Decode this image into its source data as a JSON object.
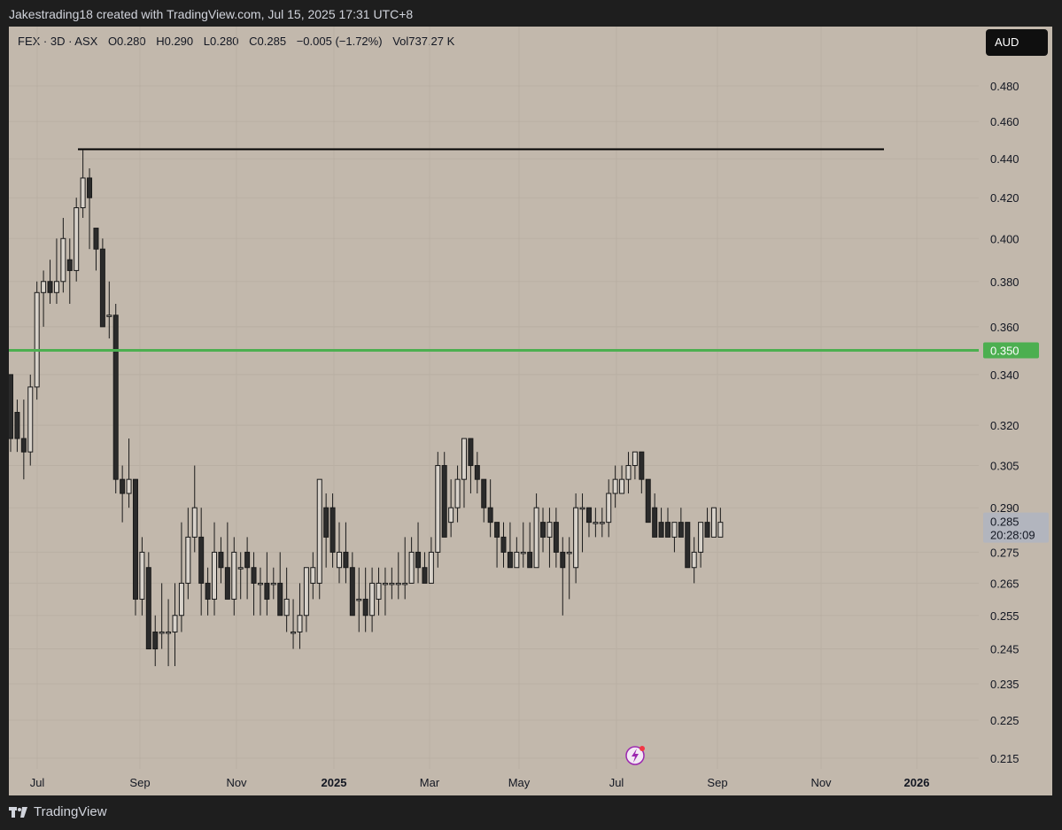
{
  "header": {
    "caption": "Jakestrading18 created with TradingView.com, Jul 15, 2025 17:31 UTC+8"
  },
  "legend": {
    "symbol": "FEX · 3D · ASX",
    "open": "O0.280",
    "high": "H0.290",
    "low": "L0.280",
    "close": "C0.285",
    "change": "−0.005 (−1.72%)",
    "volume": "Vol737.27 K"
  },
  "currency": "AUD",
  "footer": {
    "brand": "TradingView"
  },
  "colors": {
    "background": "#c2b8ac",
    "up_body": "#d8d2ca",
    "down_body": "#2b2b2b",
    "wick": "#1a1a1a",
    "support_line": "#4caf50",
    "resistance_line": "#000000"
  },
  "chart_data": {
    "type": "candlestick",
    "title": "",
    "interval": "3D",
    "ylim": [
      0.21,
      0.49
    ],
    "y_scale": "log",
    "y_ticks": [
      "0.480",
      "0.460",
      "0.440",
      "0.420",
      "0.400",
      "0.380",
      "0.360",
      "0.340",
      "0.320",
      "0.305",
      "0.290",
      "0.275",
      "0.265",
      "0.255",
      "0.245",
      "0.235",
      "0.225",
      "0.215"
    ],
    "x_ticks": [
      "Jul",
      "Sep",
      "Nov",
      "2025",
      "Mar",
      "May",
      "Jul",
      "Sep",
      "Nov",
      "2026"
    ],
    "horizontal_lines": [
      {
        "name": "support",
        "value": 0.35,
        "label": "0.350",
        "color": "#4caf50"
      },
      {
        "name": "resistance",
        "value": 0.445,
        "color": "#000000"
      }
    ],
    "current_price": {
      "value": 0.285,
      "label": "0.285",
      "countdown": "20:28:09"
    },
    "candles": [
      [
        0.34,
        0.34,
        0.31,
        0.315
      ],
      [
        0.325,
        0.33,
        0.31,
        0.315
      ],
      [
        0.315,
        0.33,
        0.3,
        0.31
      ],
      [
        0.31,
        0.34,
        0.305,
        0.335
      ],
      [
        0.335,
        0.38,
        0.33,
        0.375
      ],
      [
        0.375,
        0.385,
        0.36,
        0.38
      ],
      [
        0.38,
        0.39,
        0.37,
        0.375
      ],
      [
        0.375,
        0.4,
        0.37,
        0.38
      ],
      [
        0.38,
        0.41,
        0.375,
        0.4
      ],
      [
        0.39,
        0.4,
        0.37,
        0.385
      ],
      [
        0.385,
        0.42,
        0.38,
        0.415
      ],
      [
        0.415,
        0.445,
        0.41,
        0.43
      ],
      [
        0.43,
        0.435,
        0.395,
        0.42
      ],
      [
        0.405,
        0.405,
        0.385,
        0.395
      ],
      [
        0.395,
        0.4,
        0.36,
        0.36
      ],
      [
        0.365,
        0.38,
        0.355,
        0.365
      ],
      [
        0.365,
        0.37,
        0.295,
        0.3
      ],
      [
        0.3,
        0.305,
        0.285,
        0.295
      ],
      [
        0.295,
        0.315,
        0.29,
        0.3
      ],
      [
        0.3,
        0.3,
        0.255,
        0.26
      ],
      [
        0.26,
        0.28,
        0.255,
        0.275
      ],
      [
        0.27,
        0.275,
        0.245,
        0.245
      ],
      [
        0.25,
        0.255,
        0.24,
        0.245
      ],
      [
        0.25,
        0.265,
        0.245,
        0.25
      ],
      [
        0.25,
        0.26,
        0.24,
        0.25
      ],
      [
        0.25,
        0.265,
        0.24,
        0.255
      ],
      [
        0.255,
        0.285,
        0.25,
        0.265
      ],
      [
        0.265,
        0.29,
        0.26,
        0.28
      ],
      [
        0.28,
        0.305,
        0.275,
        0.29
      ],
      [
        0.28,
        0.29,
        0.255,
        0.265
      ],
      [
        0.265,
        0.27,
        0.255,
        0.26
      ],
      [
        0.26,
        0.285,
        0.255,
        0.275
      ],
      [
        0.275,
        0.28,
        0.265,
        0.27
      ],
      [
        0.27,
        0.285,
        0.26,
        0.26
      ],
      [
        0.26,
        0.28,
        0.255,
        0.275
      ],
      [
        0.27,
        0.275,
        0.26,
        0.27
      ],
      [
        0.275,
        0.28,
        0.26,
        0.27
      ],
      [
        0.27,
        0.275,
        0.255,
        0.265
      ],
      [
        0.265,
        0.27,
        0.255,
        0.265
      ],
      [
        0.265,
        0.275,
        0.255,
        0.26
      ],
      [
        0.265,
        0.27,
        0.26,
        0.265
      ],
      [
        0.265,
        0.275,
        0.255,
        0.255
      ],
      [
        0.255,
        0.27,
        0.25,
        0.26
      ],
      [
        0.25,
        0.26,
        0.245,
        0.25
      ],
      [
        0.25,
        0.265,
        0.245,
        0.255
      ],
      [
        0.255,
        0.27,
        0.25,
        0.27
      ],
      [
        0.265,
        0.275,
        0.26,
        0.27
      ],
      [
        0.265,
        0.3,
        0.26,
        0.3
      ],
      [
        0.29,
        0.295,
        0.27,
        0.28
      ],
      [
        0.29,
        0.295,
        0.27,
        0.275
      ],
      [
        0.27,
        0.285,
        0.265,
        0.275
      ],
      [
        0.275,
        0.285,
        0.265,
        0.27
      ],
      [
        0.27,
        0.275,
        0.255,
        0.255
      ],
      [
        0.26,
        0.27,
        0.25,
        0.26
      ],
      [
        0.26,
        0.27,
        0.25,
        0.255
      ],
      [
        0.255,
        0.27,
        0.25,
        0.265
      ],
      [
        0.26,
        0.27,
        0.255,
        0.265
      ],
      [
        0.265,
        0.27,
        0.255,
        0.265
      ],
      [
        0.265,
        0.27,
        0.26,
        0.265
      ],
      [
        0.265,
        0.275,
        0.26,
        0.265
      ],
      [
        0.265,
        0.28,
        0.26,
        0.265
      ],
      [
        0.265,
        0.28,
        0.265,
        0.275
      ],
      [
        0.275,
        0.285,
        0.265,
        0.27
      ],
      [
        0.27,
        0.275,
        0.265,
        0.265
      ],
      [
        0.265,
        0.28,
        0.265,
        0.275
      ],
      [
        0.275,
        0.31,
        0.27,
        0.305
      ],
      [
        0.305,
        0.31,
        0.28,
        0.28
      ],
      [
        0.285,
        0.3,
        0.28,
        0.29
      ],
      [
        0.29,
        0.305,
        0.285,
        0.3
      ],
      [
        0.3,
        0.315,
        0.29,
        0.315
      ],
      [
        0.315,
        0.315,
        0.295,
        0.305
      ],
      [
        0.305,
        0.31,
        0.295,
        0.3
      ],
      [
        0.3,
        0.3,
        0.285,
        0.29
      ],
      [
        0.29,
        0.3,
        0.28,
        0.285
      ],
      [
        0.285,
        0.285,
        0.27,
        0.28
      ],
      [
        0.28,
        0.285,
        0.27,
        0.275
      ],
      [
        0.275,
        0.285,
        0.27,
        0.27
      ],
      [
        0.27,
        0.28,
        0.27,
        0.275
      ],
      [
        0.275,
        0.285,
        0.27,
        0.275
      ],
      [
        0.275,
        0.285,
        0.27,
        0.27
      ],
      [
        0.27,
        0.295,
        0.27,
        0.29
      ],
      [
        0.285,
        0.29,
        0.275,
        0.28
      ],
      [
        0.28,
        0.29,
        0.27,
        0.285
      ],
      [
        0.285,
        0.29,
        0.27,
        0.275
      ],
      [
        0.275,
        0.28,
        0.255,
        0.27
      ],
      [
        0.275,
        0.28,
        0.26,
        0.275
      ],
      [
        0.27,
        0.295,
        0.265,
        0.29
      ],
      [
        0.29,
        0.295,
        0.275,
        0.29
      ],
      [
        0.29,
        0.29,
        0.28,
        0.285
      ],
      [
        0.285,
        0.29,
        0.28,
        0.285
      ],
      [
        0.285,
        0.29,
        0.28,
        0.285
      ],
      [
        0.285,
        0.3,
        0.28,
        0.295
      ],
      [
        0.295,
        0.305,
        0.29,
        0.3
      ],
      [
        0.295,
        0.305,
        0.295,
        0.3
      ],
      [
        0.3,
        0.31,
        0.295,
        0.305
      ],
      [
        0.305,
        0.31,
        0.3,
        0.31
      ],
      [
        0.31,
        0.31,
        0.295,
        0.3
      ],
      [
        0.3,
        0.3,
        0.285,
        0.285
      ],
      [
        0.29,
        0.295,
        0.28,
        0.28
      ],
      [
        0.285,
        0.29,
        0.28,
        0.28
      ],
      [
        0.285,
        0.29,
        0.28,
        0.28
      ],
      [
        0.28,
        0.285,
        0.275,
        0.285
      ],
      [
        0.285,
        0.29,
        0.28,
        0.28
      ],
      [
        0.285,
        0.285,
        0.27,
        0.27
      ],
      [
        0.27,
        0.28,
        0.265,
        0.275
      ],
      [
        0.275,
        0.285,
        0.27,
        0.285
      ],
      [
        0.285,
        0.29,
        0.28,
        0.28
      ],
      [
        0.28,
        0.29,
        0.28,
        0.29
      ],
      [
        0.28,
        0.29,
        0.28,
        0.285
      ]
    ]
  }
}
